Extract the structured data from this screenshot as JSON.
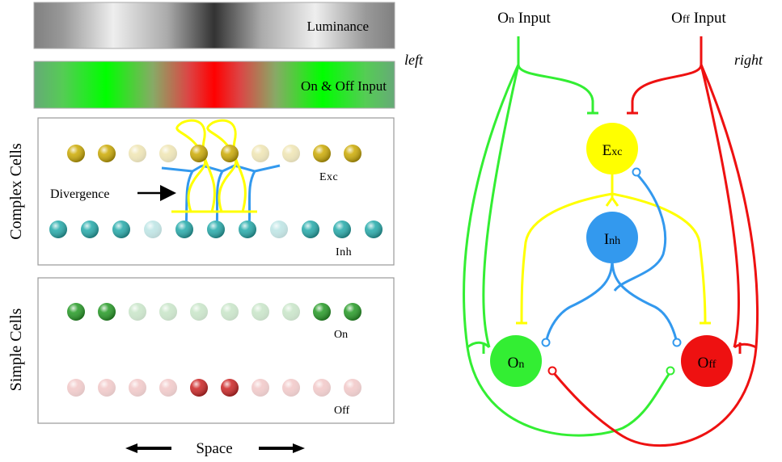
{
  "left_panel": {
    "luminance_label": "Luminance",
    "input_label": {
      "on": "On",
      "amp": "&",
      "off": "Off",
      "word": "Input"
    },
    "complex_cells": {
      "label": "Complex Cells",
      "exc_label": "Exc",
      "inh_label": "Inh",
      "divergence_label": "Divergence",
      "exc_intensity": [
        1,
        1,
        0.3,
        0.3,
        1,
        1,
        0.3,
        0.3,
        1,
        1
      ],
      "inh_intensity": [
        1,
        1,
        1,
        0.3,
        1,
        1,
        1,
        0.3,
        1,
        1,
        1
      ]
    },
    "simple_cells": {
      "label": "Simple Cells",
      "on_label": "On",
      "off_label": "Off",
      "on_intensity": [
        1,
        1,
        0.25,
        0.25,
        0.25,
        0.25,
        0.25,
        0.25,
        1,
        1
      ],
      "off_intensity": [
        0.25,
        0.25,
        0.25,
        0.25,
        1,
        1,
        0.25,
        0.25,
        0.25,
        0.25
      ]
    },
    "space_label": "Space"
  },
  "right_panel": {
    "on_input_label": {
      "first": "O",
      "rest": "n",
      "word": "Input"
    },
    "off_input_label": {
      "first": "O",
      "rest": "ff",
      "word": "Input"
    },
    "left_label": "left",
    "right_label": "right",
    "nodes": {
      "exc": {
        "first": "E",
        "rest": "xc"
      },
      "inh": {
        "first": "I",
        "rest": "nh"
      },
      "on": {
        "first": "O",
        "rest": "n"
      },
      "off": {
        "first": "O",
        "rest": "ff"
      }
    }
  },
  "colors": {
    "on": "#33ee33",
    "off": "#ee1111",
    "exc": "#ffff00",
    "inh": "#3399ee",
    "exc_bead": "#ccaa00",
    "inh_bead": "#22aaaa",
    "on_bead": "#229922",
    "off_bead": "#cc2222"
  }
}
